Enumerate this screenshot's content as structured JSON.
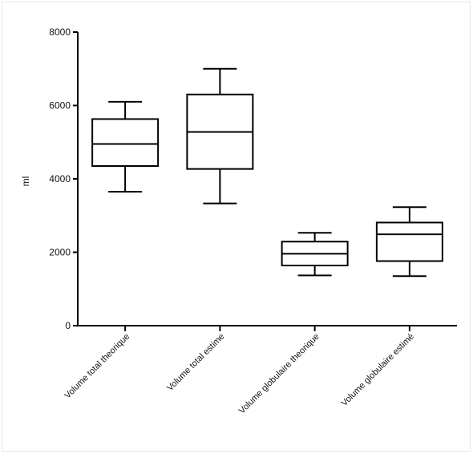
{
  "chart_data": {
    "type": "box",
    "title": "",
    "xlabel": "",
    "ylabel": "ml",
    "ylim": [
      0,
      8000
    ],
    "yticks": [
      0,
      2000,
      4000,
      6000,
      8000
    ],
    "grid": false,
    "legend": "none",
    "categories": [
      "Volume total theorique",
      "Volume total estime",
      "Volume globulaire theorique",
      "Volume globulaire estimé"
    ],
    "boxes": [
      {
        "min": 3650,
        "q1": 4350,
        "median": 4950,
        "q3": 5630,
        "max": 6100
      },
      {
        "min": 3330,
        "q1": 4270,
        "median": 5280,
        "q3": 6300,
        "max": 7000
      },
      {
        "min": 1370,
        "q1": 1640,
        "median": 1960,
        "q3": 2290,
        "max": 2530
      },
      {
        "min": 1350,
        "q1": 1760,
        "median": 2490,
        "q3": 2810,
        "max": 3230
      }
    ],
    "colors": {
      "stroke": "#000000",
      "box_fill": "#ffffff"
    }
  }
}
